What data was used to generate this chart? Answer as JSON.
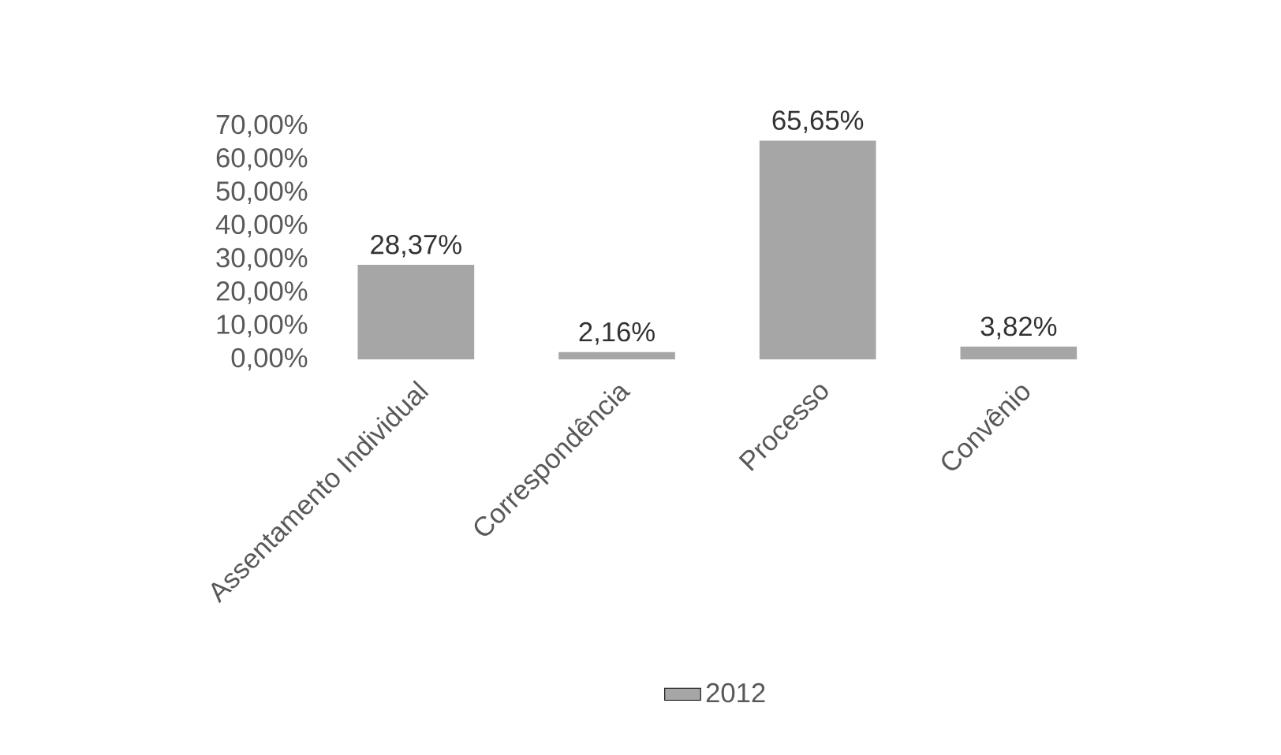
{
  "chart_data": {
    "type": "bar",
    "categories": [
      "Assentamento Individual",
      "Correspondência",
      "Processo",
      "Convênio"
    ],
    "series": [
      {
        "name": "2012",
        "color": "#a6a6a6",
        "values": [
          28.37,
          2.16,
          65.65,
          3.82
        ],
        "value_labels": [
          "28,37%",
          "2,16%",
          "65,65%",
          "3,82%"
        ]
      }
    ],
    "ylim": [
      0,
      70
    ],
    "yticks": [
      {
        "value": 0,
        "label": "0,00%"
      },
      {
        "value": 10,
        "label": "10,00%"
      },
      {
        "value": 20,
        "label": "20,00%"
      },
      {
        "value": 30,
        "label": "30,00%"
      },
      {
        "value": 40,
        "label": "40,00%"
      },
      {
        "value": 50,
        "label": "50,00%"
      },
      {
        "value": 60,
        "label": "60,00%"
      },
      {
        "value": 70,
        "label": "70,00%"
      }
    ],
    "grid": false,
    "legend": "bottom"
  }
}
